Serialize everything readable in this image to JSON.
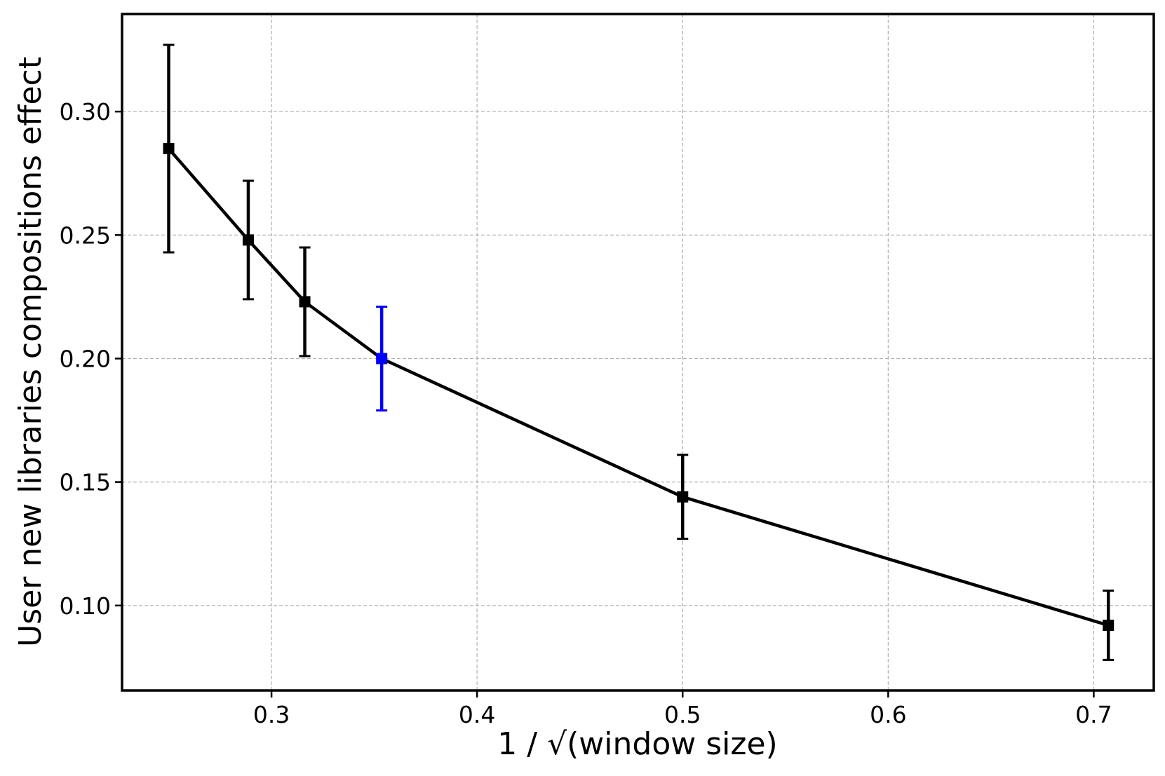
{
  "chart_data": {
    "type": "line",
    "title": "",
    "xlabel": "1 / √(window size)",
    "ylabel": "User new libraries compositions effect",
    "xlim": [
      0.2273,
      0.7292
    ],
    "ylim": [
      0.0656,
      0.3395
    ],
    "x_ticks": [
      0.3,
      0.4,
      0.5,
      0.6,
      0.7
    ],
    "x_tick_labels": [
      "0.3",
      "0.4",
      "0.5",
      "0.6",
      "0.7"
    ],
    "y_ticks": [
      0.1,
      0.15,
      0.2,
      0.25,
      0.3
    ],
    "y_tick_labels": [
      "0.10",
      "0.15",
      "0.20",
      "0.25",
      "0.30"
    ],
    "grid": true,
    "marker": "square",
    "series": [
      {
        "color": "#000000",
        "points": [
          {
            "x": 0.25,
            "y": 0.285,
            "err_low": 0.243,
            "err_high": 0.327,
            "color": "#000000"
          },
          {
            "x": 0.2887,
            "y": 0.248,
            "err_low": 0.224,
            "err_high": 0.272,
            "color": "#000000"
          },
          {
            "x": 0.3162,
            "y": 0.223,
            "err_low": 0.201,
            "err_high": 0.245,
            "color": "#000000"
          },
          {
            "x": 0.3536,
            "y": 0.2,
            "err_low": 0.179,
            "err_high": 0.221,
            "color": "#0000ff"
          },
          {
            "x": 0.5,
            "y": 0.144,
            "err_low": 0.127,
            "err_high": 0.161,
            "color": "#000000"
          },
          {
            "x": 0.7071,
            "y": 0.092,
            "err_low": 0.078,
            "err_high": 0.106,
            "color": "#000000"
          }
        ]
      }
    ]
  }
}
